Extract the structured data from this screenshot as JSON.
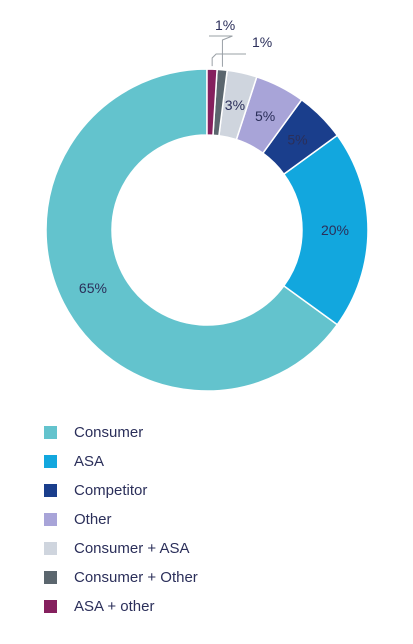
{
  "chart_data": {
    "type": "pie",
    "donut": true,
    "categories": [
      "Consumer",
      "ASA",
      "Competitor",
      "Other",
      "Consumer + ASA",
      "Consumer + Other",
      "ASA + other"
    ],
    "values": [
      65,
      20,
      5,
      5,
      3,
      1,
      1
    ],
    "data_labels": [
      "65%",
      "20%",
      "5%",
      "5%",
      "3%",
      "1%",
      "1%"
    ],
    "colors": [
      "#63c3cd",
      "#12a7de",
      "#1a3e8c",
      "#a8a4d8",
      "#cfd5de",
      "#5b666e",
      "#85205e"
    ],
    "legend_position": "bottom-left"
  },
  "legend": [
    {
      "label": "Consumer",
      "color": "#63c3cd"
    },
    {
      "label": "ASA",
      "color": "#12a7de"
    },
    {
      "label": "Competitor",
      "color": "#1a3e8c"
    },
    {
      "label": "Other",
      "color": "#a8a4d8"
    },
    {
      "label": "Consumer + ASA",
      "color": "#cfd5de"
    },
    {
      "label": "Consumer + Other",
      "color": "#5b666e"
    },
    {
      "label": "ASA + other",
      "color": "#85205e"
    }
  ]
}
